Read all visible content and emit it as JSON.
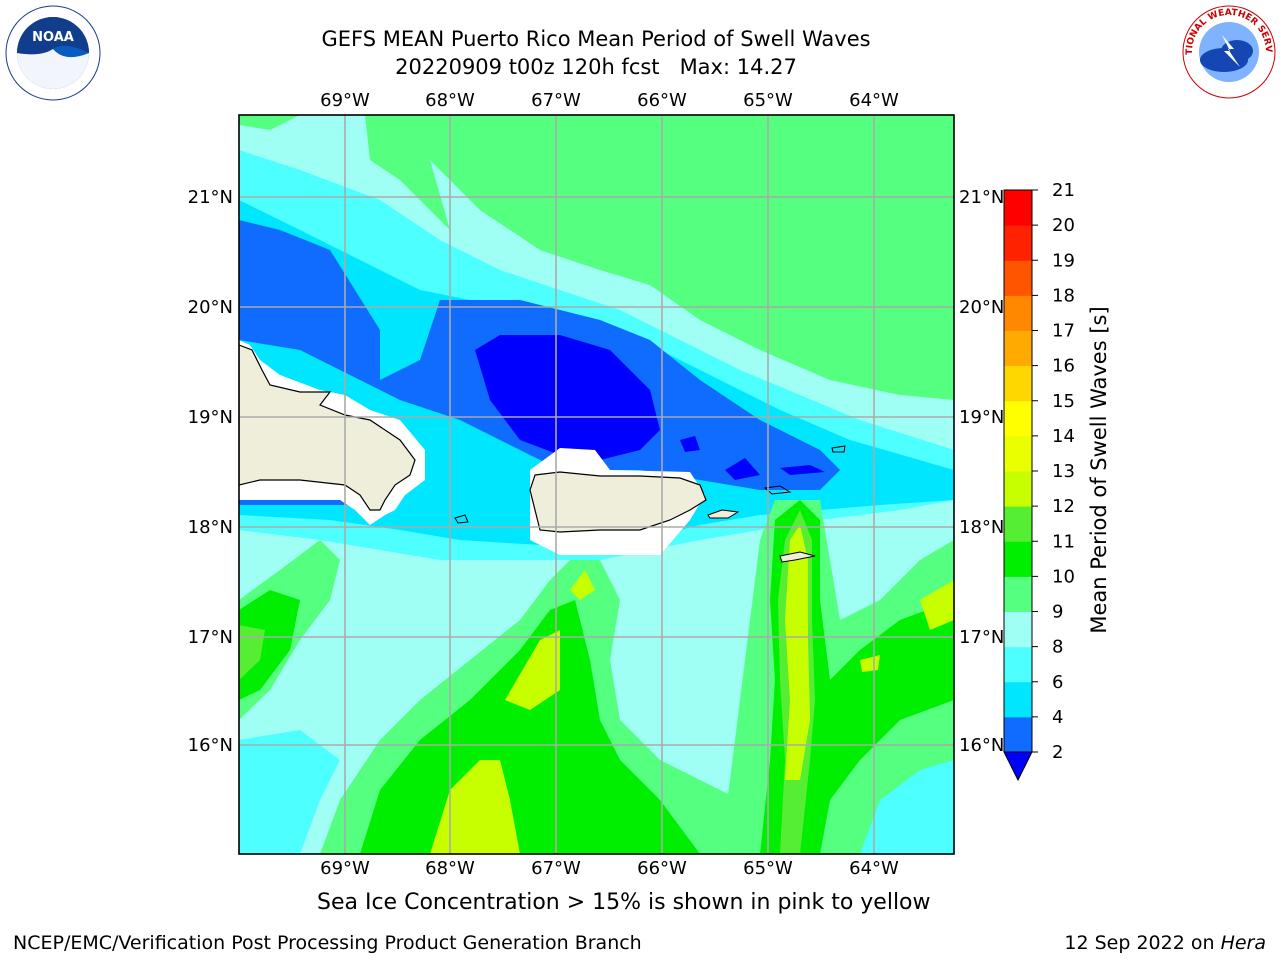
{
  "title_line1": "GEFS MEAN Puerto Rico Mean Period of Swell Waves",
  "title_line2": "20220909 t00z 120h fcst   Max: 14.27",
  "lon_labels": [
    "69°W",
    "68°W",
    "67°W",
    "66°W",
    "65°W",
    "64°W"
  ],
  "lat_labels": [
    "21°N",
    "20°N",
    "19°N",
    "18°N",
    "17°N",
    "16°N"
  ],
  "colorbar": {
    "label": "Mean Period of Swell Waves [s]",
    "ticks": [
      "2",
      "4",
      "6",
      "8",
      "9",
      "10",
      "11",
      "12",
      "13",
      "14",
      "15",
      "16",
      "17",
      "18",
      "19",
      "20",
      "21"
    ],
    "colors": [
      "#0000ff",
      "#0f6cff",
      "#00e6ff",
      "#4dffff",
      "#a0fff4",
      "#55ff7f",
      "#00ee00",
      "#55ee33",
      "#c8ff00",
      "#eaff00",
      "#ffff00",
      "#ffd700",
      "#ffaa00",
      "#ff8800",
      "#ff5500",
      "#ff2200",
      "#ff0000"
    ]
  },
  "subtitle": "Sea Ice Concentration > 15% is shown in pink to yellow",
  "footer_left": "NCEP/EMC/Verification Post Processing Product Generation Branch",
  "footer_date": "12 Sep 2022 on ",
  "footer_host": "Hera",
  "logos": {
    "left": "noaa-logo",
    "right": "nws-logo",
    "noaa_text": "NOAA",
    "nws_text": "NATIONAL WEATHER SERVICE"
  }
}
